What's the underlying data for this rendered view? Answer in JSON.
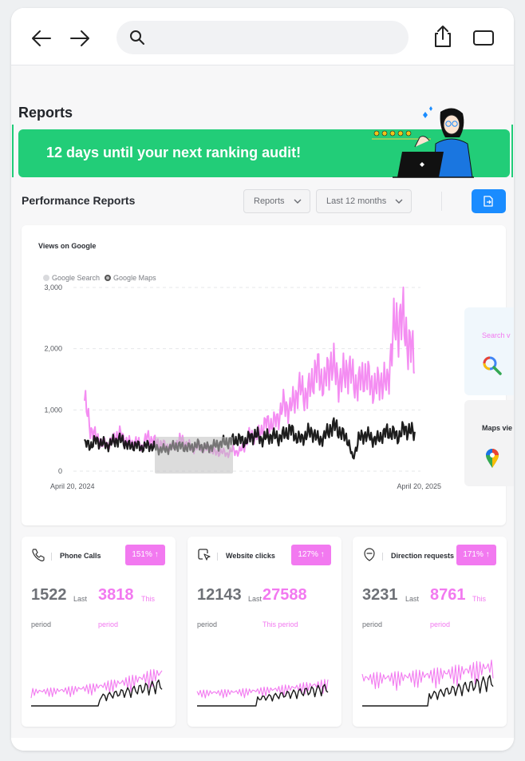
{
  "browser": {
    "search": {
      "value": "",
      "placeholder": ""
    }
  },
  "page": {
    "title": "Reports",
    "banner_text": "12 days until your next ranking audit!"
  },
  "performance": {
    "section_title": "Performance Reports",
    "filters": {
      "type_selected": "Reports",
      "range_selected": "Last 12 months"
    }
  },
  "views_chart": {
    "title": "Views on Google",
    "legend": [
      "Google Search",
      "Google Maps"
    ],
    "x_start_label": "April 20, 2024",
    "x_end_label": "April 20, 2025",
    "y_ticks": [
      "3,000",
      "2,000",
      "1,000",
      "0"
    ]
  },
  "side_cards": [
    {
      "label": "Search v",
      "icon": "google-search-icon"
    },
    {
      "label": "Maps vie",
      "icon": "google-maps-pin-icon"
    }
  ],
  "metrics": [
    {
      "title": "Phone Calls",
      "badge": "151% ↑",
      "last_value": "1522",
      "last_label": "Last",
      "this_value": "3818",
      "this_label": "This",
      "period_last": "period",
      "period_this": "period",
      "icon": "phone-icon"
    },
    {
      "title": "Website clicks",
      "badge": "127% ↑",
      "last_value": "12143",
      "last_label": "Last",
      "this_value": "27588",
      "this_label": "",
      "period_last": "period",
      "period_this": "This period",
      "icon": "website-click-icon"
    },
    {
      "title": "Direction requests",
      "badge": "171% ↑",
      "last_value": "3231",
      "last_label": "Last",
      "this_value": "8761",
      "this_label": "This",
      "period_last": "period",
      "period_this": "period",
      "icon": "directions-icon"
    }
  ],
  "colors": {
    "banner": "#22cd78",
    "accent_pink": "#f279f0",
    "primary_blue": "#1a8cff",
    "maps_series": "#111111",
    "search_series": "#f279f0"
  },
  "chart_data": {
    "type": "line",
    "title": "Views on Google",
    "xlabel": "",
    "ylabel": "",
    "x_range": [
      "April 20, 2024",
      "April 20, 2025"
    ],
    "ylim": [
      0,
      3000
    ],
    "grid": true,
    "legend_position": "top-left",
    "series": [
      {
        "name": "Google Search",
        "values": [
          1150,
          700,
          560,
          470,
          420,
          520,
          620,
          510,
          450,
          480,
          400,
          560,
          500,
          450,
          420,
          380,
          450,
          520,
          420,
          380,
          400,
          380,
          360,
          300,
          320,
          280,
          350,
          300,
          420,
          600,
          560,
          680,
          800,
          760,
          900,
          1100,
          1000,
          1250,
          1350,
          1200,
          1550,
          1650,
          1400,
          1800,
          1600,
          1450,
          1700,
          1500,
          1400,
          1600,
          1450,
          1350,
          1500,
          1400,
          2200,
          2500,
          2400,
          2000,
          1850
        ]
      },
      {
        "name": "Google Maps",
        "values": [
          450,
          420,
          500,
          460,
          420,
          480,
          520,
          470,
          400,
          430,
          380,
          420,
          400,
          360,
          350,
          380,
          420,
          400,
          380,
          400,
          430,
          380,
          400,
          420,
          460,
          480,
          500,
          520,
          480,
          550,
          600,
          520,
          560,
          580,
          540,
          600,
          680,
          560,
          520,
          620,
          640,
          500,
          560,
          700,
          740,
          600,
          550,
          200,
          520,
          600,
          560,
          500,
          580,
          640,
          620,
          560,
          700,
          650,
          620
        ]
      }
    ]
  }
}
